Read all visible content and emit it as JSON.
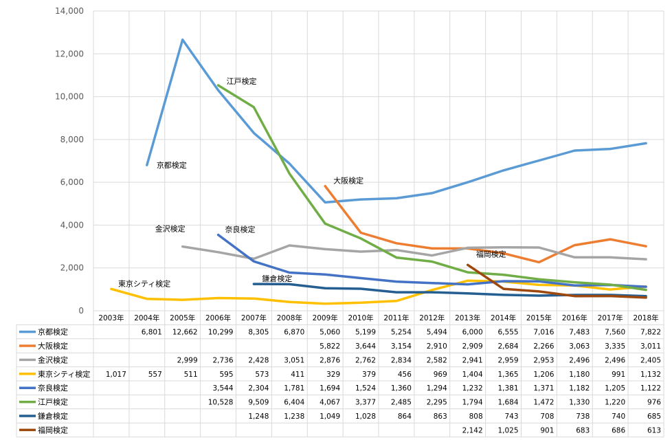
{
  "chart_data": {
    "type": "line",
    "categories": [
      "2003年",
      "2004年",
      "2005年",
      "2006年",
      "2007年",
      "2008年",
      "2009年",
      "2010年",
      "2011年",
      "2012年",
      "2013年",
      "2014年",
      "2015年",
      "2016年",
      "2017年",
      "2018年"
    ],
    "ylim": [
      0,
      14000
    ],
    "yticks": [
      "0",
      "2,000",
      "4,000",
      "6,000",
      "8,000",
      "10,000",
      "12,000",
      "14,000"
    ],
    "grid": true,
    "legend": "data table below chart",
    "series": [
      {
        "name": "京都検定",
        "color": "#5B9BD5",
        "values": [
          null,
          6801,
          12662,
          10299,
          8305,
          6870,
          5060,
          5199,
          5254,
          5494,
          6000,
          6555,
          7016,
          7483,
          7560,
          7822
        ]
      },
      {
        "name": "大阪検定",
        "color": "#ED7D31",
        "values": [
          null,
          null,
          null,
          null,
          null,
          null,
          5822,
          3644,
          3154,
          2910,
          2909,
          2684,
          2266,
          3063,
          3335,
          3011
        ]
      },
      {
        "name": "金沢検定",
        "color": "#A5A5A5",
        "values": [
          null,
          null,
          2999,
          2736,
          2428,
          3051,
          2876,
          2762,
          2834,
          2582,
          2941,
          2959,
          2953,
          2496,
          2496,
          2405
        ]
      },
      {
        "name": "東京シティ検定",
        "color": "#FFC000",
        "values": [
          1017,
          557,
          511,
          595,
          573,
          411,
          329,
          379,
          456,
          969,
          1404,
          1365,
          1206,
          1180,
          991,
          1132
        ]
      },
      {
        "name": "奈良検定",
        "color": "#4472C4",
        "values": [
          null,
          null,
          null,
          3544,
          2304,
          1781,
          1694,
          1524,
          1360,
          1294,
          1232,
          1381,
          1371,
          1182,
          1205,
          1122
        ]
      },
      {
        "name": "江戸検定",
        "color": "#70AD47",
        "values": [
          null,
          null,
          null,
          10528,
          9509,
          6404,
          4067,
          3377,
          2485,
          2295,
          1794,
          1684,
          1472,
          1330,
          1220,
          976
        ]
      },
      {
        "name": "鎌倉検定",
        "color": "#255E91",
        "values": [
          null,
          null,
          null,
          null,
          1248,
          1238,
          1049,
          1028,
          864,
          863,
          808,
          743,
          708,
          738,
          740,
          685
        ]
      },
      {
        "name": "福岡検定",
        "color": "#9E480E",
        "values": [
          null,
          null,
          null,
          null,
          null,
          null,
          null,
          null,
          null,
          null,
          2142,
          1025,
          901,
          683,
          686,
          613
        ]
      }
    ],
    "table": {
      "京都検定": [
        "",
        "6,801",
        "12,662",
        "10,299",
        "8,305",
        "6,870",
        "5,060",
        "5,199",
        "5,254",
        "5,494",
        "6,000",
        "6,555",
        "7,016",
        "7,483",
        "7,560",
        "7,822"
      ],
      "大阪検定": [
        "",
        "",
        "",
        "",
        "",
        "",
        "5,822",
        "3,644",
        "3,154",
        "2,910",
        "2,909",
        "2,684",
        "2,266",
        "3,063",
        "3,335",
        "3,011"
      ],
      "金沢検定": [
        "",
        "",
        "2,999",
        "2,736",
        "2,428",
        "3,051",
        "2,876",
        "2,762",
        "2,834",
        "2,582",
        "2,941",
        "2,959",
        "2,953",
        "2,496",
        "2,496",
        "2,405"
      ],
      "東京シティ検定": [
        "1,017",
        "557",
        "511",
        "595",
        "573",
        "411",
        "329",
        "379",
        "456",
        "969",
        "1,404",
        "1,365",
        "1,206",
        "1,180",
        "991",
        "1,132"
      ],
      "奈良検定": [
        "",
        "",
        "",
        "3,544",
        "2,304",
        "1,781",
        "1,694",
        "1,524",
        "1,360",
        "1,294",
        "1,232",
        "1,381",
        "1,371",
        "1,182",
        "1,205",
        "1,122"
      ],
      "江戸検定": [
        "",
        "",
        "",
        "10,528",
        "9,509",
        "6,404",
        "4,067",
        "3,377",
        "2,485",
        "2,295",
        "1,794",
        "1,684",
        "1,472",
        "1,330",
        "1,220",
        "976"
      ],
      "鎌倉検定": [
        "",
        "",
        "",
        "",
        "1,248",
        "1,238",
        "1,049",
        "1,028",
        "864",
        "863",
        "808",
        "743",
        "708",
        "738",
        "740",
        "685"
      ],
      "福岡検定": [
        "",
        "",
        "",
        "",
        "",
        "",
        "",
        "",
        "",
        "",
        "2,142",
        "1,025",
        "901",
        "683",
        "686",
        "613"
      ]
    },
    "annotations": [
      {
        "text": "京都検定",
        "series": "京都検定"
      },
      {
        "text": "江戸検定",
        "series": "江戸検定"
      },
      {
        "text": "大阪検定",
        "series": "大阪検定"
      },
      {
        "text": "金沢検定",
        "series": "金沢検定"
      },
      {
        "text": "奈良検定",
        "series": "奈良検定"
      },
      {
        "text": "福岡検定",
        "series": "福岡検定"
      },
      {
        "text": "東京シティ検定",
        "series": "東京シティ検定"
      },
      {
        "text": "鎌倉検定",
        "series": "鎌倉検定"
      }
    ]
  }
}
